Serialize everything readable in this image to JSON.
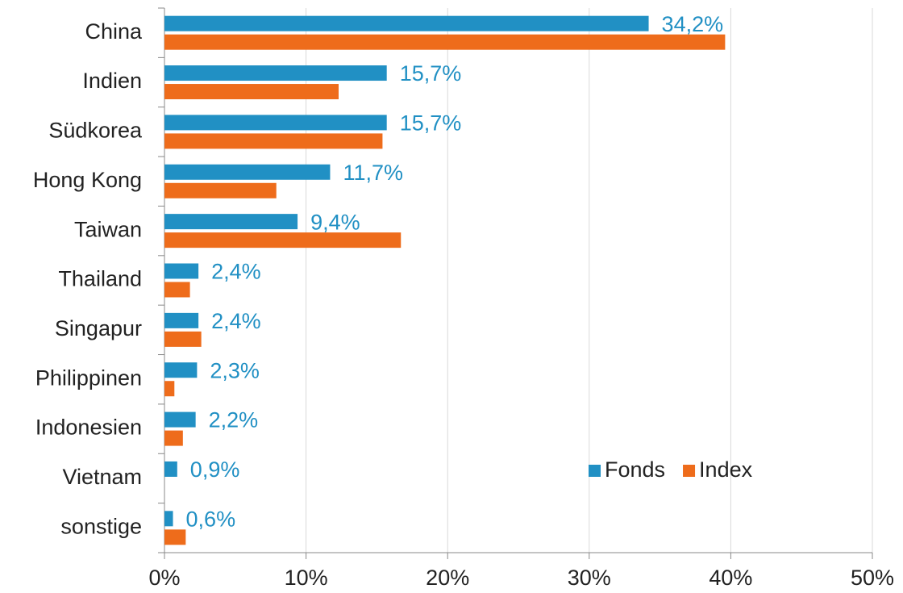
{
  "chart_data": {
    "type": "bar",
    "orientation": "horizontal",
    "categories": [
      "China",
      "Indien",
      "Südkorea",
      "Hong Kong",
      "Taiwan",
      "Thailand",
      "Singapur",
      "Philippinen",
      "Indonesien",
      "Vietnam",
      "sonstige"
    ],
    "series": [
      {
        "name": "Fonds",
        "color": "#2190c4",
        "values": [
          34.2,
          15.7,
          15.7,
          11.7,
          9.4,
          2.4,
          2.4,
          2.3,
          2.2,
          0.9,
          0.6
        ],
        "value_labels": [
          "34,2%",
          "15,7%",
          "15,7%",
          "11,7%",
          "9,4%",
          "2,4%",
          "2,4%",
          "2,3%",
          "2,2%",
          "0,9%",
          "0,6%"
        ]
      },
      {
        "name": "Index",
        "color": "#ee6c1b",
        "values": [
          39.6,
          12.3,
          15.4,
          7.9,
          16.7,
          1.8,
          2.6,
          0.7,
          1.3,
          0,
          1.5
        ]
      }
    ],
    "xlim": [
      0,
      50
    ],
    "xticks": [
      {
        "value": 0,
        "label": "0%"
      },
      {
        "value": 10,
        "label": "10%"
      },
      {
        "value": 20,
        "label": "20%"
      },
      {
        "value": 30,
        "label": "30%"
      },
      {
        "value": 40,
        "label": "40%"
      },
      {
        "value": 50,
        "label": "50%"
      }
    ],
    "grid": true,
    "legend": "lower right"
  }
}
